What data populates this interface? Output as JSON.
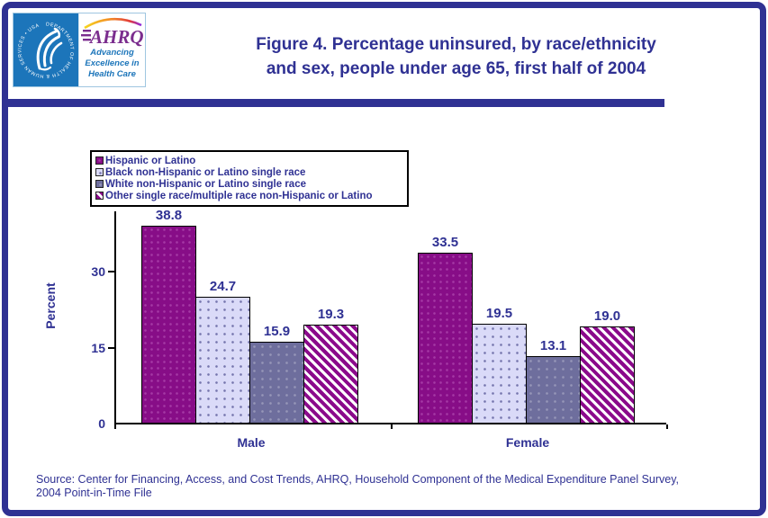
{
  "header": {
    "title_line1": "Figure 4. Percentage uninsured, by race/ethnicity",
    "title_line2": "and sex, people under age 65, first half of 2004",
    "hhs_circular_text": "DEPARTMENT OF HEALTH & HUMAN SERVICES • USA",
    "ahrq_acronym": "AHRQ",
    "ahrq_tagline_line1": "Advancing",
    "ahrq_tagline_line2": "Excellence in",
    "ahrq_tagline_line3": "Health Care"
  },
  "colors": {
    "navy": "#2F3193",
    "hhs_blue": "#1C75BA",
    "ahrq_purple": "#7B2D8E",
    "bar_hispanic": "#870D87",
    "bar_black": "#DADAF8",
    "bar_white": "#6E6E9D",
    "bar_other_stripe": "#8B0A8B"
  },
  "chart_data": {
    "type": "bar",
    "title": "Figure 4. Percentage uninsured, by race/ethnicity and sex, people under age 65, first half of 2004",
    "categories": [
      "Male",
      "Female"
    ],
    "series": [
      {
        "name": "Hispanic or Latino",
        "values": [
          38.8,
          33.5
        ],
        "fill": "solid-magenta"
      },
      {
        "name": "Black non-Hispanic or Latino single race",
        "values": [
          24.7,
          19.5
        ],
        "fill": "dotted-lavender"
      },
      {
        "name": "White non-Hispanic or Latino single race",
        "values": [
          15.9,
          13.1
        ],
        "fill": "solid-slate"
      },
      {
        "name": "Other single race/multiple race non-Hispanic or Latino",
        "values": [
          19.3,
          19.0
        ],
        "fill": "hatched-magenta"
      }
    ],
    "ylabel": "Percent",
    "yticks": [
      0,
      15,
      30
    ],
    "ylim": [
      0,
      42
    ],
    "grid": false,
    "legend_position": "top-left",
    "value_labels": true
  },
  "source_note_line1": "Source: Center for Financing, Access, and Cost Trends, AHRQ, Household Component of the Medical Expenditure Panel Survey,",
  "source_note_line2": "2004 Point-in-Time File"
}
